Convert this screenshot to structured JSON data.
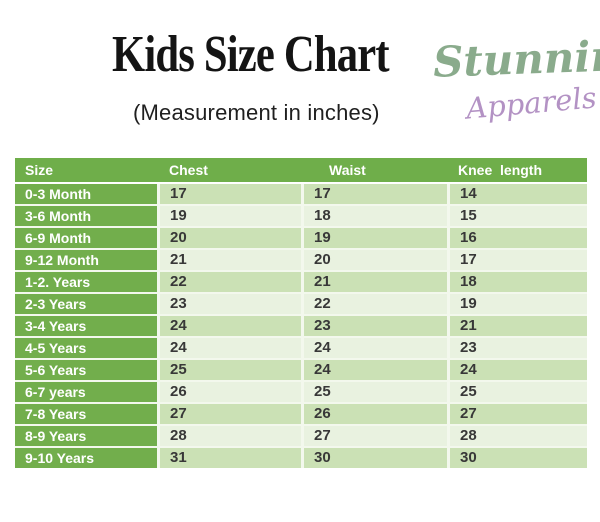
{
  "header": {
    "title": "Kids Size Chart",
    "subtitle": "(Measurement in inches)",
    "brand": {
      "word1": "Stunning",
      "word2": "Apparels",
      "word1_color": "#8aab8c",
      "word2_color": "#b392c4"
    }
  },
  "table": {
    "columns": [
      "Size",
      "Chest",
      "Waist",
      "Knee  length"
    ],
    "colors": {
      "header_bg": "#6fae4a",
      "size_col_bg": "#72ae4c",
      "row_odd_bg": "#cbe1b5",
      "row_even_bg": "#e9f2e0",
      "header_text": "#ffffff",
      "cell_text": "#383838"
    },
    "rows": [
      {
        "size": "0-3 Month",
        "chest": "17",
        "waist": "17",
        "knee_length": "14"
      },
      {
        "size": "3-6 Month",
        "chest": "19",
        "waist": "18",
        "knee_length": "15"
      },
      {
        "size": "6-9 Month",
        "chest": "20",
        "waist": "19",
        "knee_length": "16"
      },
      {
        "size": "9-12 Month",
        "chest": "21",
        "waist": "20",
        "knee_length": "17"
      },
      {
        "size": "1-2. Years",
        "chest": "22",
        "waist": "21",
        "knee_length": "18"
      },
      {
        "size": "2-3 Years",
        "chest": "23",
        "waist": "22",
        "knee_length": "19"
      },
      {
        "size": "3-4 Years",
        "chest": "24",
        "waist": "23",
        "knee_length": "21"
      },
      {
        "size": "4-5 Years",
        "chest": "24",
        "waist": "24",
        "knee_length": "23"
      },
      {
        "size": "5-6 Years",
        "chest": "25",
        "waist": "24",
        "knee_length": "24"
      },
      {
        "size": "6-7 years",
        "chest": "26",
        "waist": "25",
        "knee_length": "25"
      },
      {
        "size": "7-8 Years",
        "chest": "27",
        "waist": "26",
        "knee_length": "27"
      },
      {
        "size": "8-9 Years",
        "chest": "28",
        "waist": "27",
        "knee_length": "28"
      },
      {
        "size": "9-10 Years",
        "chest": "31",
        "waist": "30",
        "knee_length": "30"
      }
    ]
  }
}
